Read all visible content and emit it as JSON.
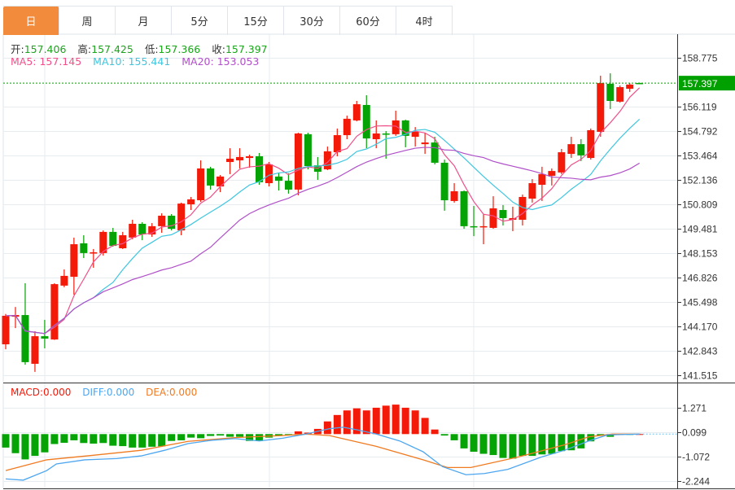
{
  "tabs": [
    {
      "label": "日",
      "active": true
    },
    {
      "label": "周"
    },
    {
      "label": "月"
    },
    {
      "label": "5分"
    },
    {
      "label": "15分"
    },
    {
      "label": "30分"
    },
    {
      "label": "60分"
    },
    {
      "label": "4时"
    }
  ],
  "ohlc_info": {
    "open_label": "开:",
    "open": "157.406",
    "high_label": "高:",
    "high": "157.425",
    "low_label": "低:",
    "low": "157.366",
    "close_label": "收:",
    "close": "157.397"
  },
  "ma_info": {
    "ma5": "MA5: 157.145",
    "ma10": "MA10: 155.441",
    "ma20": "MA20: 153.053"
  },
  "macd_info": {
    "macd": "MACD:0.000",
    "diff": "DIFF:0.000",
    "dea": "DEA:0.000"
  },
  "colors": {
    "up": "#f31a0a",
    "down": "#05a305",
    "ma5": "#f0508a",
    "ma10": "#3ec6e0",
    "ma20": "#b050c8",
    "diff": "#4da6f0",
    "dea": "#f07a20",
    "accent": "#f28c3c",
    "last_price_bg": "#00a000"
  },
  "chart_data": [
    {
      "type": "candlestick",
      "title": "price",
      "yticks": [
        "158.775",
        "156.119",
        "154.792",
        "153.464",
        "152.136",
        "150.809",
        "149.481",
        "148.153",
        "146.826",
        "145.498",
        "144.170",
        "142.843",
        "141.515"
      ],
      "ylim": [
        141.515,
        158.775
      ],
      "last_price": "157.397",
      "ma_periods": [
        5,
        10,
        20
      ],
      "candles": [
        [
          143.2,
          144.85,
          142.93,
          144.75
        ],
        [
          144.7,
          145.23,
          144.08,
          144.79
        ],
        [
          144.79,
          146.52,
          142.09,
          142.23
        ],
        [
          142.14,
          143.91,
          141.7,
          143.64
        ],
        [
          143.64,
          144.53,
          142.98,
          143.51
        ],
        [
          143.46,
          146.52,
          143.44,
          146.47
        ],
        [
          146.39,
          147.27,
          146.3,
          146.92
        ],
        [
          146.87,
          149.0,
          145.9,
          148.64
        ],
        [
          148.69,
          149.13,
          147.89,
          148.16
        ],
        [
          148.16,
          148.38,
          147.36,
          148.2
        ],
        [
          148.16,
          149.39,
          148.02,
          149.31
        ],
        [
          149.31,
          149.53,
          148.51,
          148.55
        ],
        [
          148.42,
          149.31,
          148.38,
          149.13
        ],
        [
          149.0,
          149.97,
          148.91,
          149.75
        ],
        [
          149.75,
          149.84,
          148.86,
          149.17
        ],
        [
          149.17,
          149.79,
          149.04,
          149.62
        ],
        [
          149.62,
          150.32,
          149.26,
          150.19
        ],
        [
          150.19,
          150.28,
          149.39,
          149.48
        ],
        [
          149.39,
          150.9,
          149.13,
          150.85
        ],
        [
          150.81,
          151.21,
          150.5,
          151.08
        ],
        [
          151.03,
          153.2,
          150.94,
          152.76
        ],
        [
          152.76,
          152.85,
          151.61,
          151.83
        ],
        [
          151.78,
          152.4,
          151.47,
          152.32
        ],
        [
          153.11,
          153.86,
          152.45,
          153.29
        ],
        [
          153.2,
          153.86,
          152.76,
          153.38
        ],
        [
          153.33,
          153.51,
          152.8,
          153.42
        ],
        [
          153.42,
          153.6,
          151.87,
          152.01
        ],
        [
          151.96,
          153.11,
          151.78,
          152.98
        ],
        [
          152.32,
          152.54,
          151.56,
          152.09
        ],
        [
          152.09,
          152.49,
          151.39,
          151.61
        ],
        [
          151.61,
          154.7,
          151.3,
          154.66
        ],
        [
          154.62,
          154.7,
          152.71,
          152.89
        ],
        [
          152.93,
          153.38,
          152.14,
          152.58
        ],
        [
          152.71,
          153.95,
          152.67,
          153.69
        ],
        [
          153.64,
          154.93,
          153.42,
          154.57
        ],
        [
          154.57,
          155.63,
          154.35,
          155.46
        ],
        [
          155.37,
          156.43,
          155.32,
          156.25
        ],
        [
          156.21,
          156.74,
          153.86,
          154.39
        ],
        [
          154.35,
          155.37,
          153.86,
          154.66
        ],
        [
          154.66,
          154.79,
          153.29,
          154.64
        ],
        [
          154.62,
          155.9,
          154.53,
          155.37
        ],
        [
          155.37,
          155.41,
          153.91,
          154.53
        ],
        [
          154.48,
          155.01,
          153.95,
          154.75
        ],
        [
          154.08,
          154.7,
          153.55,
          154.17
        ],
        [
          154.17,
          154.48,
          152.98,
          153.07
        ],
        [
          153.07,
          153.24,
          150.46,
          151.03
        ],
        [
          150.99,
          151.96,
          150.9,
          151.52
        ],
        [
          151.52,
          151.56,
          149.48,
          149.62
        ],
        [
          149.62,
          150.72,
          149.08,
          149.57
        ],
        [
          149.57,
          150.28,
          148.64,
          149.62
        ],
        [
          149.53,
          151.25,
          149.48,
          150.59
        ],
        [
          150.5,
          150.77,
          149.66,
          150.06
        ],
        [
          149.97,
          150.68,
          149.35,
          150.06
        ],
        [
          149.97,
          151.34,
          149.66,
          151.21
        ],
        [
          151.12,
          152.18,
          150.9,
          151.96
        ],
        [
          151.87,
          152.85,
          150.99,
          152.45
        ],
        [
          152.36,
          152.76,
          151.83,
          152.62
        ],
        [
          152.54,
          153.82,
          152.45,
          153.64
        ],
        [
          153.55,
          154.48,
          153.33,
          154.08
        ],
        [
          154.08,
          154.35,
          153.16,
          153.47
        ],
        [
          153.33,
          154.93,
          153.24,
          154.84
        ],
        [
          154.75,
          157.8,
          154.48,
          157.4
        ],
        [
          157.36,
          157.93,
          155.99,
          156.43
        ],
        [
          156.39,
          157.27,
          156.34,
          157.18
        ],
        [
          157.09,
          157.4,
          156.92,
          157.32
        ],
        [
          157.406,
          157.425,
          157.366,
          157.397
        ]
      ]
    },
    {
      "type": "bar+line",
      "title": "MACD",
      "yticks": [
        "1.271",
        "0.099",
        "-1.072",
        "-2.244"
      ],
      "histogram": [
        -0.65,
        -0.92,
        -1.22,
        -1.05,
        -0.88,
        -0.48,
        -0.42,
        -0.3,
        -0.43,
        -0.46,
        -0.43,
        -0.56,
        -0.58,
        -0.65,
        -0.65,
        -0.61,
        -0.59,
        -0.33,
        -0.3,
        -0.17,
        -0.2,
        -0.09,
        -0.07,
        -0.13,
        -0.13,
        -0.33,
        -0.33,
        -0.17,
        -0.09,
        -0.03,
        0.13,
        0.07,
        0.25,
        0.61,
        0.92,
        1.14,
        1.24,
        1.14,
        1.27,
        1.37,
        1.42,
        1.27,
        1.14,
        0.78,
        0.22,
        -0.07,
        -0.3,
        -0.69,
        -0.85,
        -0.95,
        -1.01,
        -1.15,
        -1.18,
        -1.05,
        -1.05,
        -0.98,
        -0.95,
        -0.82,
        -0.78,
        -0.69,
        -0.35,
        -0.07,
        -0.13,
        -0.03,
        -0.01,
        0
      ],
      "dea": [
        [
          0,
          -1.76
        ],
        [
          4.2,
          -1.24
        ],
        [
          9,
          -1.02
        ],
        [
          13.9,
          -0.78
        ],
        [
          18.7,
          -0.35
        ],
        [
          23.5,
          -0.17
        ],
        [
          28.4,
          -0.07
        ],
        [
          30.8,
          0
        ],
        [
          33.2,
          -0.07
        ],
        [
          38,
          -0.59
        ],
        [
          42.8,
          -1.24
        ],
        [
          45.3,
          -1.61
        ],
        [
          47.7,
          -1.61
        ],
        [
          52.5,
          -1.11
        ],
        [
          57.3,
          -0.52
        ],
        [
          59.8,
          -0.13
        ],
        [
          62.2,
          0
        ],
        [
          65,
          0
        ]
      ],
      "diff": [
        [
          0,
          -2.16
        ],
        [
          1.8,
          -2.22
        ],
        [
          4.2,
          -1.76
        ],
        [
          5.2,
          -1.44
        ],
        [
          8.1,
          -1.24
        ],
        [
          11.4,
          -1.18
        ],
        [
          13.9,
          -1.05
        ],
        [
          16.3,
          -0.78
        ],
        [
          18.7,
          -0.46
        ],
        [
          21.1,
          -0.3
        ],
        [
          23.5,
          -0.22
        ],
        [
          26,
          -0.33
        ],
        [
          28.4,
          -0.2
        ],
        [
          30.8,
          0
        ],
        [
          33.2,
          0.26
        ],
        [
          34.6,
          0.33
        ],
        [
          36.1,
          0.2
        ],
        [
          38,
          0
        ],
        [
          40.4,
          -0.33
        ],
        [
          42.8,
          -0.85
        ],
        [
          44.8,
          -1.57
        ],
        [
          47.2,
          -1.96
        ],
        [
          49.1,
          -1.9
        ],
        [
          51.5,
          -1.7
        ],
        [
          54.9,
          -1.11
        ],
        [
          57.3,
          -0.78
        ],
        [
          59.8,
          -0.33
        ],
        [
          61.7,
          -0.04
        ],
        [
          65,
          0
        ]
      ]
    }
  ]
}
